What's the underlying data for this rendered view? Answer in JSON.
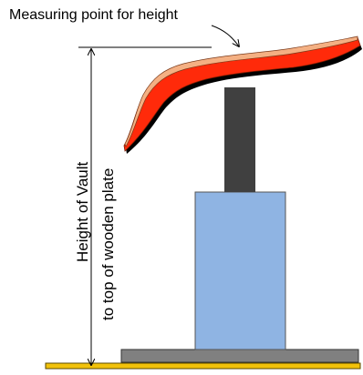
{
  "labels": {
    "measuring_point": "Measuring point for height",
    "height_line1": "Height of Vault",
    "height_line2": "to top of wooden plate"
  },
  "colors": {
    "background": "#ffffff",
    "vault_top": "#f4b083",
    "vault_body": "#ff2a0a",
    "vault_shadow": "#000000",
    "column": "#404040",
    "pedestal": "#8fb4e3",
    "base_plate": "#808080",
    "wooden_plate": "#f2c20a",
    "line": "#000000"
  },
  "icons": {
    "dimension_line": "vertical-double-arrow",
    "leader_line": "curved-arrow"
  }
}
